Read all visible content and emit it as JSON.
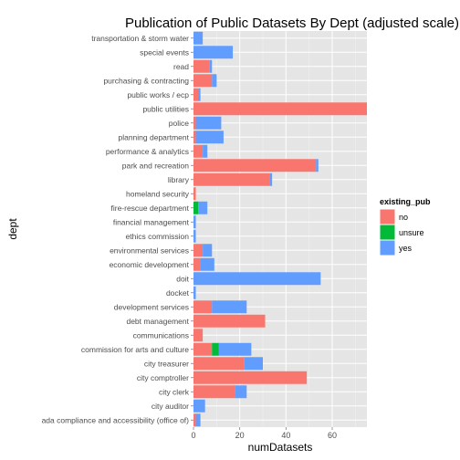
{
  "chart_data": {
    "type": "bar",
    "orientation": "horizontal",
    "stacked": true,
    "title": "Publication of Public Datasets By Dept (adjusted scale)",
    "xlabel": "numDatasets",
    "ylabel": "dept",
    "xlim": [
      0,
      75
    ],
    "xticks": [
      "0",
      "20",
      "40",
      "60"
    ],
    "xtick_values": [
      0,
      20,
      40,
      60
    ],
    "grid": true,
    "legend": {
      "title": "existing_pub",
      "position": "right",
      "entries": [
        "no",
        "unsure",
        "yes"
      ]
    },
    "categories": [
      "transportation & storm water",
      "special events",
      "read",
      "purchasing & contracting",
      "public works / ecp",
      "public utilities",
      "police",
      "planning department",
      "performance & analytics",
      "park and recreation",
      "library",
      "homeland security",
      "fire-rescue department",
      "financial management",
      "ethics commission",
      "environmental services",
      "economic development",
      "doit",
      "docket",
      "development services",
      "debt management",
      "communications",
      "commission for arts and culture",
      "city treasurer",
      "city comptroller",
      "city clerk",
      "city auditor",
      "ada compliance and accessibility (office of)"
    ],
    "series": [
      {
        "name": "no",
        "color": "#F8766D",
        "values": [
          0,
          0,
          7,
          8,
          2,
          77,
          1,
          1,
          4,
          53,
          33,
          1,
          0,
          0,
          0,
          4,
          3,
          0,
          0,
          8,
          31,
          4,
          8,
          22,
          49,
          18,
          0,
          1
        ]
      },
      {
        "name": "unsure",
        "color": "#00BA38",
        "values": [
          0,
          0,
          0,
          0,
          0,
          0,
          0,
          0,
          0,
          0,
          0,
          0,
          2,
          0,
          0,
          0,
          0,
          0,
          0,
          0,
          0,
          0,
          3,
          0,
          0,
          0,
          0,
          0
        ]
      },
      {
        "name": "yes",
        "color": "#619CFF",
        "values": [
          4,
          17,
          1,
          2,
          1,
          0,
          11,
          12,
          2,
          1,
          1,
          0,
          4,
          1,
          1,
          4,
          6,
          55,
          1,
          15,
          0,
          0,
          14,
          8,
          0,
          5,
          5,
          2
        ]
      }
    ]
  }
}
